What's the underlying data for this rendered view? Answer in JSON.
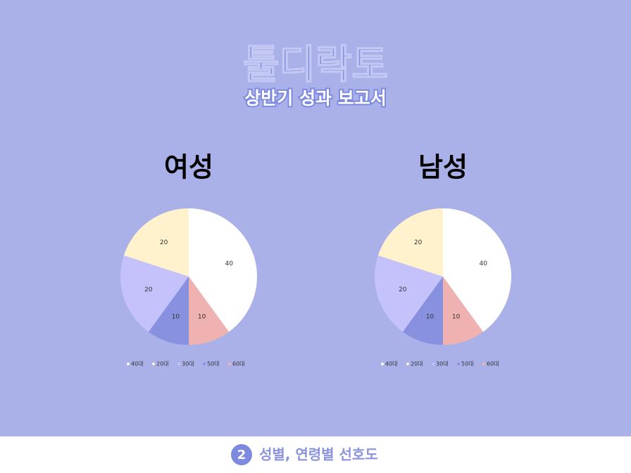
{
  "header": {
    "title": "툴디락토",
    "subtitle": "상반기 성과 보고서"
  },
  "chart_data": [
    {
      "type": "pie",
      "title": "여성",
      "categories": [
        "40대",
        "20대",
        "30대",
        "50대",
        "60대"
      ],
      "values": [
        40,
        20,
        20,
        10,
        10
      ],
      "colors": [
        "#ffffff",
        "#fff2cc",
        "#c4c1fb",
        "#8891e0",
        "#f0b2b0"
      ],
      "direction": "counterclockwise",
      "legend": "bottom"
    },
    {
      "type": "pie",
      "title": "남성",
      "categories": [
        "40대",
        "20대",
        "30대",
        "50대",
        "60대"
      ],
      "values": [
        40,
        20,
        20,
        10,
        10
      ],
      "colors": [
        "#ffffff",
        "#fff2cc",
        "#c4c1fb",
        "#8891e0",
        "#f0b2b0"
      ],
      "direction": "counterclockwise",
      "legend": "bottom"
    }
  ],
  "footer": {
    "number": "2",
    "text": "성별, 연령별 선호도"
  }
}
